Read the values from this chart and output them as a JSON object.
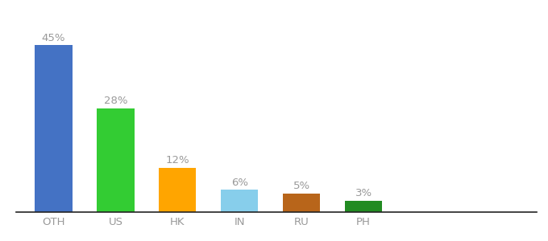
{
  "categories": [
    "OTH",
    "US",
    "HK",
    "IN",
    "RU",
    "PH"
  ],
  "values": [
    45,
    28,
    12,
    6,
    5,
    3
  ],
  "labels": [
    "45%",
    "28%",
    "12%",
    "6%",
    "5%",
    "3%"
  ],
  "bar_colors": [
    "#4472C4",
    "#33CC33",
    "#FFA500",
    "#87CEEB",
    "#B8651A",
    "#228B22"
  ],
  "background_color": "#ffffff",
  "ylim": [
    0,
    52
  ],
  "label_color": "#999999",
  "label_fontsize": 9.5,
  "tick_fontsize": 9.5,
  "tick_color": "#999999",
  "bar_width": 0.6
}
